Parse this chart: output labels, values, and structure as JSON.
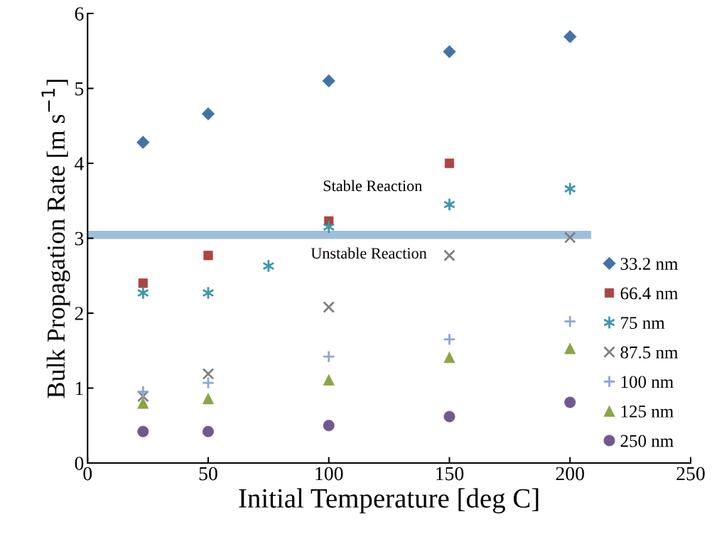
{
  "chart_data": {
    "type": "scatter",
    "xlabel": "Initial Temperature [deg C]",
    "ylabel": "Bulk Propagation Rate [m s$^{−1}$]",
    "xlim": [
      0,
      250
    ],
    "xticks": [
      0,
      50,
      100,
      150,
      200,
      250
    ],
    "ylim": [
      0,
      6
    ],
    "yticks": [
      0,
      1,
      2,
      3,
      4,
      5,
      6
    ],
    "grid": false,
    "legend": "bottom right",
    "series": [
      {
        "name": "33.2 nm",
        "color": "#4472a8",
        "marker": "diamond",
        "x": [
          23,
          50,
          100,
          150,
          200
        ],
        "values": [
          4.28,
          4.66,
          5.1,
          5.49,
          5.69
        ]
      },
      {
        "name": "66.4 nm",
        "color": "#aa4643",
        "marker": "square",
        "x": [
          23,
          50,
          100,
          150
        ],
        "values": [
          2.4,
          2.77,
          3.23,
          4.0
        ]
      },
      {
        "name": "75 nm",
        "color": "#3d96ae",
        "x": [
          23,
          50,
          75,
          100,
          150,
          200
        ],
        "values": [
          2.27,
          2.27,
          2.63,
          3.15,
          3.45,
          3.66
        ]
      },
      {
        "name": "87.5 nm",
        "color": "#7f7f7f",
        "marker": "cross",
        "x": [
          23,
          50,
          100,
          150,
          200
        ],
        "values": [
          0.89,
          1.19,
          2.08,
          2.77,
          3.01
        ]
      },
      {
        "name": "100 nm",
        "color": "#8ea4d2",
        "marker": "plus",
        "x": [
          23,
          50,
          100,
          150,
          200
        ],
        "values": [
          0.95,
          1.07,
          1.42,
          1.65,
          1.89
        ]
      },
      {
        "name": "125 nm",
        "color": "#8ba545",
        "marker": "triangle",
        "x": [
          23,
          50,
          100,
          150,
          200
        ],
        "values": [
          0.8,
          0.86,
          1.11,
          1.41,
          1.53
        ]
      },
      {
        "name": "250 nm",
        "color": "#71588f",
        "marker": "circle",
        "x": [
          23,
          50,
          100,
          150,
          200
        ],
        "values": [
          0.42,
          0.42,
          0.5,
          0.62,
          0.81
        ]
      }
    ],
    "bands": [
      {
        "axis": "y",
        "from": 2.99,
        "to": 3.1,
        "color": "#9dbfdc"
      }
    ],
    "annotations": [
      "Stable Reaction",
      "Unstable Reaction"
    ]
  }
}
